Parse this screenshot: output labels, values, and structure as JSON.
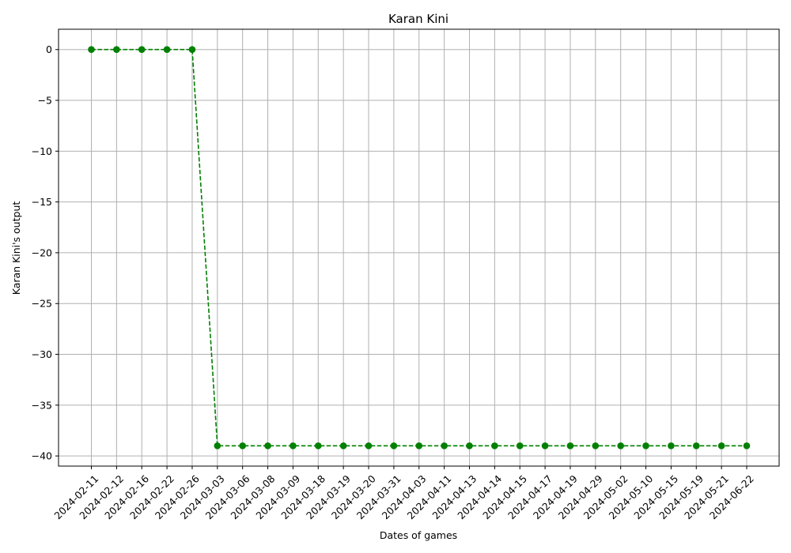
{
  "chart_data": {
    "type": "line",
    "title": "Karan Kini",
    "xlabel": "Dates of games",
    "ylabel": "Karan Kini's output",
    "x": [
      "2024-02-11",
      "2024-02-12",
      "2024-02-16",
      "2024-02-22",
      "2024-02-26",
      "2024-03-03",
      "2024-03-06",
      "2024-03-08",
      "2024-03-09",
      "2024-03-18",
      "2024-03-19",
      "2024-03-20",
      "2024-03-31",
      "2024-04-03",
      "2024-04-11",
      "2024-04-13",
      "2024-04-14",
      "2024-04-15",
      "2024-04-17",
      "2024-04-19",
      "2024-04-29",
      "2024-05-02",
      "2024-05-10",
      "2024-05-15",
      "2024-05-19",
      "2024-05-21",
      "2024-06-22"
    ],
    "series": [
      {
        "values": [
          0,
          0,
          0,
          0,
          0,
          -39,
          -39,
          -39,
          -39,
          -39,
          -39,
          -39,
          -39,
          -39,
          -39,
          -39,
          -39,
          -39,
          -39,
          -39,
          -39,
          -39,
          -39,
          -39,
          -39,
          -39,
          -39
        ],
        "color": "#008000",
        "line_style": "dashed",
        "marker": "circle"
      }
    ],
    "yticks": [
      0,
      -5,
      -10,
      -15,
      -20,
      -25,
      -30,
      -35,
      -40
    ],
    "ylim": [
      -41,
      2
    ],
    "grid": true,
    "grid_color": "#b0b0b0"
  }
}
